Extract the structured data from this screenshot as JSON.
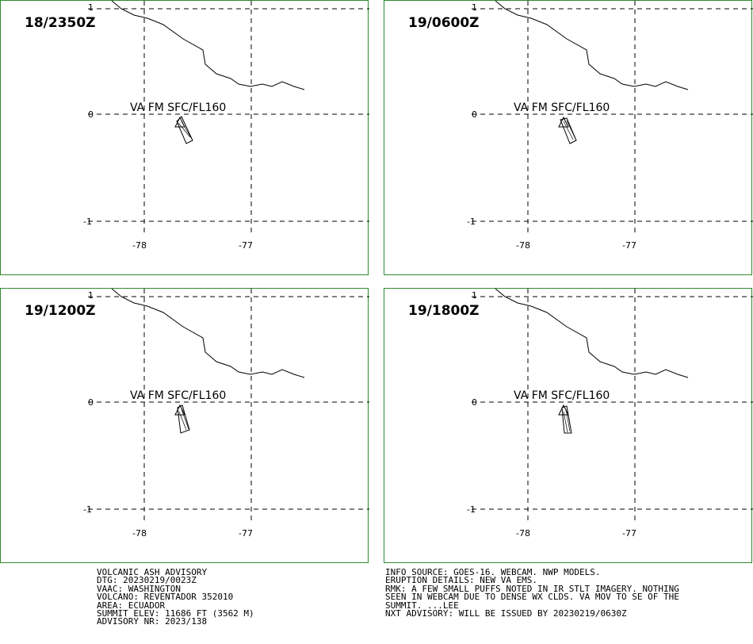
{
  "panels": [
    {
      "time": "18/2350Z",
      "label": "VA FM SFC/FL160"
    },
    {
      "time": "19/0600Z",
      "label": "VA FM SFC/FL160"
    },
    {
      "time": "19/1200Z",
      "label": "VA FM SFC/FL160"
    },
    {
      "time": "19/1800Z",
      "label": "VA FM SFC/FL160"
    }
  ],
  "axes": {
    "y_ticks": [
      "1",
      "0",
      "-1"
    ],
    "x_ticks": [
      "-78",
      "-77"
    ]
  },
  "advisory": {
    "left": [
      "VOLCANIC ASH ADVISORY",
      "DTG: 20230219/0023Z",
      "VAAC: WASHINGTON",
      "VOLCANO: REVENTADOR 352010",
      "AREA: ECUADOR",
      "SUMMIT ELEV: 11686 FT (3562 M)",
      "ADVISORY NR: 2023/138"
    ],
    "right": [
      "INFO SOURCE: GOES-16. WEBCAM. NWP MODELS.",
      "ERUPTION DETAILS: NEW VA EMS.",
      "RMK: A FEW SMALL PUFFS NOTED IN IR STLT IMAGERY. NOTHING",
      "SEEN IN WEBCAM DUE TO DENSE WX CLDS. VA MOV TO SE OF THE",
      "SUMMIT. ...LEE",
      "NXT ADVISORY: WILL BE ISSUED BY 20230219/0630Z"
    ]
  },
  "colors": {
    "frame": "#2e8b2e",
    "lines": "#000000"
  }
}
